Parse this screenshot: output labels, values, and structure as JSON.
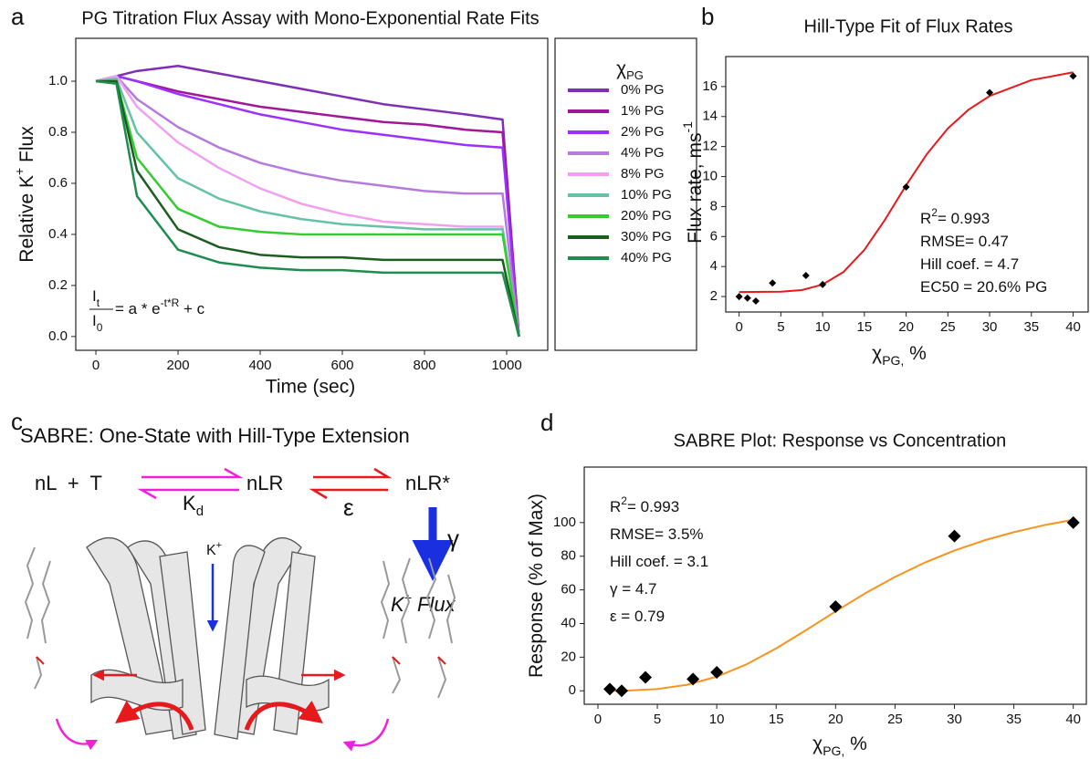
{
  "chart_data": [
    {
      "type": "line",
      "label": "a",
      "title": "PG Titration Flux Assay with Mono-Exponential Rate Fits",
      "xlabel": "Time (sec)",
      "ylabel": [
        "Relative K",
        {
          "sup": "+"
        },
        " Flux"
      ],
      "x": [
        0,
        50,
        100,
        200,
        300,
        400,
        500,
        600,
        700,
        800,
        900,
        990,
        1030
      ],
      "xlim": [
        -49,
        1100
      ],
      "xticks": [
        0,
        200,
        400,
        600,
        800,
        1000
      ],
      "ylim": [
        -0.054,
        1.168
      ],
      "yticks": [
        {
          "value": 0,
          "label": "0.0"
        },
        0.2,
        0.4,
        0.6,
        0.8,
        {
          "value": 1,
          "label": "1.0"
        }
      ],
      "legend": "right",
      "legend_title": [
        "χ",
        {
          "sub": "PG"
        }
      ],
      "annotation": {
        "numerator": [
          "I",
          {
            "sub": "t"
          }
        ],
        "denominator": [
          "I",
          {
            "sub": "0"
          }
        ],
        "rhs": [
          " = a * e",
          {
            "sup": "-t*R"
          },
          " + c"
        ]
      },
      "series": [
        {
          "name": "0% PG",
          "color": "#7e2fb4",
          "values": [
            1.0,
            1.02,
            1.04,
            1.06,
            1.03,
            1.0,
            0.97,
            0.94,
            0.91,
            0.89,
            0.87,
            0.85,
            0
          ]
        },
        {
          "name": "1% PG",
          "color": "#a0179a",
          "values": [
            1.0,
            1.02,
            1.0,
            0.96,
            0.93,
            0.9,
            0.88,
            0.86,
            0.84,
            0.83,
            0.81,
            0.8,
            0
          ]
        },
        {
          "name": "2% PG",
          "color": "#9b30ff",
          "values": [
            1.0,
            1.02,
            1.0,
            0.95,
            0.91,
            0.87,
            0.84,
            0.81,
            0.79,
            0.77,
            0.75,
            0.74,
            0
          ]
        },
        {
          "name": "4% PG",
          "color": "#b57bdc",
          "values": [
            1.0,
            1.02,
            0.93,
            0.82,
            0.74,
            0.68,
            0.64,
            0.61,
            0.59,
            0.57,
            0.56,
            0.56,
            0
          ]
        },
        {
          "name": "8% PG",
          "color": "#f0a0f0",
          "values": [
            1.0,
            1.02,
            0.9,
            0.76,
            0.66,
            0.58,
            0.52,
            0.48,
            0.45,
            0.44,
            0.43,
            0.43,
            0
          ]
        },
        {
          "name": "10% PG",
          "color": "#66c2a5",
          "values": [
            1.0,
            1.01,
            0.8,
            0.62,
            0.54,
            0.49,
            0.46,
            0.44,
            0.43,
            0.42,
            0.42,
            0.42,
            0
          ]
        },
        {
          "name": "20% PG",
          "color": "#33cc33",
          "values": [
            1.0,
            1.0,
            0.7,
            0.5,
            0.43,
            0.41,
            0.4,
            0.4,
            0.4,
            0.4,
            0.4,
            0.4,
            0
          ]
        },
        {
          "name": "30% PG",
          "color": "#1b5e20",
          "values": [
            1.0,
            1.0,
            0.65,
            0.42,
            0.35,
            0.32,
            0.31,
            0.31,
            0.3,
            0.3,
            0.3,
            0.3,
            0
          ]
        },
        {
          "name": "40% PG",
          "color": "#1e8c4e",
          "values": [
            1.0,
            0.99,
            0.55,
            0.34,
            0.29,
            0.27,
            0.26,
            0.26,
            0.25,
            0.25,
            0.25,
            0.25,
            0
          ]
        }
      ]
    },
    {
      "type": "scatter",
      "label": "b",
      "title": "Hill-Type Fit of Flux Rates",
      "xlabel": [
        "χ",
        {
          "sub": "PG,"
        },
        " %"
      ],
      "ylabel": [
        "Flux rate, ms",
        {
          "sup": "-1"
        }
      ],
      "x": [
        0,
        1,
        2,
        4,
        8,
        10,
        20,
        30,
        40
      ],
      "values": [
        2.0,
        1.9,
        1.7,
        2.9,
        3.4,
        2.8,
        9.3,
        15.6,
        16.7
      ],
      "color": "#000000",
      "fit": {
        "x": [
          0,
          5,
          7.5,
          10,
          12.5,
          15,
          17.5,
          20,
          22.5,
          25,
          27.5,
          30,
          35,
          40
        ],
        "values": [
          2.3,
          2.32,
          2.43,
          2.8,
          3.64,
          5.11,
          7.15,
          9.42,
          11.51,
          13.21,
          14.47,
          15.37,
          16.43,
          16.95
        ],
        "color": "#e8191c"
      },
      "xlim": [
        -1.6,
        41.8
      ],
      "xticks": [
        0,
        5,
        10,
        15,
        20,
        25,
        30,
        35,
        40
      ],
      "ylim": [
        0.97,
        18
      ],
      "yticks": [
        2,
        4,
        6,
        8,
        10,
        12,
        14,
        16
      ],
      "annotations": [
        [
          "R",
          {
            "sup": "2"
          },
          "= 0.993"
        ],
        [
          "RMSE= 0.47"
        ],
        [
          "Hill coef. = 4.7"
        ],
        [
          "EC50 = 20.6% PG"
        ]
      ]
    },
    {
      "type": "scatter",
      "label": "d",
      "title": "SABRE Plot: Response vs Concentration",
      "xlabel": [
        "χ",
        {
          "sub": "PG,"
        },
        " %"
      ],
      "ylabel": [
        "Response (% of Max)"
      ],
      "x": [
        1,
        2,
        4,
        8,
        10,
        20,
        30,
        40
      ],
      "values": [
        1,
        0,
        8,
        7,
        11,
        50,
        92,
        100
      ],
      "color": "#000000",
      "fit": {
        "x": [
          1,
          2.5,
          5,
          7.5,
          10,
          12.5,
          15,
          17.5,
          20,
          22.5,
          25,
          27.5,
          30,
          32.5,
          35,
          37.5,
          40
        ],
        "values": [
          0.0,
          0.12,
          1.05,
          3.6,
          8.4,
          15.7,
          25.2,
          36.0,
          47.2,
          58.0,
          67.7,
          76.2,
          83.4,
          89.4,
          94.3,
          98.4,
          101.7
        ],
        "color": "#f7931e"
      },
      "xlim": [
        -1.15,
        41.1
      ],
      "xticks": [
        0,
        5,
        10,
        15,
        20,
        25,
        30,
        35,
        40
      ],
      "ylim": [
        -8,
        133
      ],
      "yticks": [
        0,
        20,
        40,
        60,
        80,
        100
      ],
      "annotations": [
        [
          "R",
          {
            "sup": "2"
          },
          "= 0.993"
        ],
        [
          "RMSE= 3.5%"
        ],
        [
          "Hill coef. = 3.1"
        ],
        [
          "γ = 4.7"
        ],
        [
          "ε = 0.79"
        ]
      ]
    }
  ],
  "diagram": {
    "label": "c",
    "title": "SABRE: One-State with Hill-Type Extension",
    "species": [
      "nL  +  T",
      "nLR",
      "nLR*"
    ],
    "kd": [
      "K",
      {
        "sub": "d"
      }
    ],
    "epsilon": "ε",
    "gamma": "γ",
    "flux": [
      "K",
      {
        "sup": "+"
      },
      " Flux"
    ],
    "ion": [
      "K",
      {
        "sup": "+"
      }
    ]
  }
}
